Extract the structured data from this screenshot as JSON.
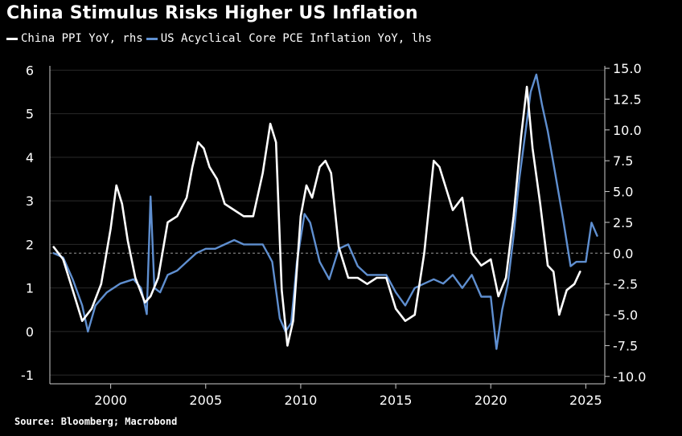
{
  "title": "China Stimulus Risks Higher US Inflation",
  "source": "Source: Bloomberg; Macrobond",
  "colors": {
    "background": "#000000",
    "china": "#ffffff",
    "us": "#5f8fd0",
    "grid": "#2a2a2a",
    "zero": "#9a9a9a"
  },
  "chart_data": {
    "type": "line",
    "title": "China Stimulus Risks Higher US Inflation",
    "xlabel": "",
    "ylabel": "",
    "x_ticks": [
      "2000",
      "2005",
      "2010",
      "2015",
      "2020",
      "2025"
    ],
    "x_range": [
      1996.8,
      2026.0
    ],
    "left_axis": {
      "ylim": [
        -1.2,
        6.1
      ],
      "ticks": [
        "6",
        "5",
        "4",
        "3",
        "2",
        "1",
        "0",
        "-1"
      ]
    },
    "right_axis": {
      "ylim": [
        -10.6,
        15.2
      ],
      "ticks": [
        "15.0",
        "12.5",
        "10.0",
        "7.5",
        "5.0",
        "2.5",
        "0.0",
        "-2.5",
        "-5.0",
        "-7.5",
        "-10.0"
      ]
    },
    "zero_reference": "dashed line at 0.0 rhs",
    "grid": "horizontal",
    "legend_position": "top-left",
    "series": [
      {
        "name": "China PPI YoY, rhs",
        "axis": "right",
        "color": "#ffffff",
        "x": [
          1997.0,
          1997.5,
          1998.0,
          1998.5,
          1999.0,
          1999.5,
          2000.0,
          2000.3,
          2000.6,
          2000.9,
          2001.3,
          2001.8,
          2002.1,
          2002.5,
          2003.0,
          2003.5,
          2004.0,
          2004.3,
          2004.6,
          2004.9,
          2005.2,
          2005.6,
          2006.0,
          2006.5,
          2007.0,
          2007.5,
          2008.0,
          2008.4,
          2008.7,
          2009.0,
          2009.3,
          2009.6,
          2010.0,
          2010.3,
          2010.6,
          2011.0,
          2011.3,
          2011.6,
          2012.0,
          2012.5,
          2013.0,
          2013.5,
          2014.0,
          2014.5,
          2015.0,
          2015.5,
          2016.0,
          2016.5,
          2017.0,
          2017.3,
          2017.6,
          2018.0,
          2018.5,
          2019.0,
          2019.5,
          2020.0,
          2020.4,
          2020.8,
          2021.2,
          2021.6,
          2021.9,
          2022.2,
          2022.6,
          2023.0,
          2023.3,
          2023.6,
          2024.0,
          2024.4,
          2024.7
        ],
        "values": [
          0.5,
          -0.5,
          -3.0,
          -5.5,
          -4.5,
          -2.5,
          2.0,
          5.5,
          4.0,
          1.0,
          -2.0,
          -4.0,
          -3.5,
          -2.0,
          2.5,
          3.0,
          4.5,
          7.0,
          9.0,
          8.5,
          7.0,
          6.0,
          4.0,
          3.5,
          3.0,
          3.0,
          6.5,
          10.5,
          9.0,
          -3.0,
          -7.5,
          -5.5,
          3.0,
          5.5,
          4.5,
          7.0,
          7.5,
          6.5,
          0.5,
          -2.0,
          -2.0,
          -2.5,
          -2.0,
          -2.0,
          -4.5,
          -5.5,
          -5.0,
          0.0,
          7.5,
          7.0,
          5.5,
          3.5,
          4.5,
          0.0,
          -1.0,
          -0.5,
          -3.5,
          -2.0,
          3.0,
          9.5,
          13.5,
          8.5,
          4.0,
          -1.0,
          -1.5,
          -5.0,
          -3.0,
          -2.5,
          -1.5
        ]
      },
      {
        "name": "US Acyclical Core PCE Inflation YoY, lhs",
        "axis": "left",
        "color": "#5f8fd0",
        "x": [
          1997.0,
          1997.5,
          1998.0,
          1998.5,
          1998.8,
          1999.2,
          1999.8,
          2000.5,
          2001.2,
          2001.6,
          2001.9,
          2002.1,
          2002.3,
          2002.6,
          2003.0,
          2003.5,
          2004.0,
          2004.5,
          2005.0,
          2005.5,
          2006.0,
          2006.5,
          2007.0,
          2007.5,
          2008.0,
          2008.5,
          2008.9,
          2009.2,
          2009.5,
          2009.8,
          2010.2,
          2010.5,
          2011.0,
          2011.5,
          2012.0,
          2012.5,
          2013.0,
          2013.5,
          2014.0,
          2014.5,
          2015.0,
          2015.5,
          2016.0,
          2016.5,
          2017.0,
          2017.5,
          2018.0,
          2018.5,
          2019.0,
          2019.5,
          2020.0,
          2020.3,
          2020.6,
          2020.9,
          2021.2,
          2021.5,
          2021.8,
          2022.1,
          2022.4,
          2022.7,
          2023.0,
          2023.4,
          2023.8,
          2024.2,
          2024.5,
          2025.0,
          2025.3,
          2025.6
        ],
        "values": [
          1.8,
          1.7,
          1.2,
          0.6,
          0.0,
          0.6,
          0.9,
          1.1,
          1.2,
          1.0,
          0.4,
          3.1,
          1.0,
          0.9,
          1.3,
          1.4,
          1.6,
          1.8,
          1.9,
          1.9,
          2.0,
          2.1,
          2.0,
          2.0,
          2.0,
          1.6,
          0.3,
          0.0,
          0.2,
          1.6,
          2.7,
          2.5,
          1.6,
          1.2,
          1.9,
          2.0,
          1.5,
          1.3,
          1.3,
          1.3,
          0.9,
          0.6,
          1.0,
          1.1,
          1.2,
          1.1,
          1.3,
          1.0,
          1.3,
          0.8,
          0.8,
          -0.4,
          0.5,
          1.1,
          2.2,
          3.5,
          4.5,
          5.5,
          5.9,
          5.2,
          4.6,
          3.6,
          2.6,
          1.5,
          1.6,
          1.6,
          2.5,
          2.2
        ]
      }
    ]
  }
}
